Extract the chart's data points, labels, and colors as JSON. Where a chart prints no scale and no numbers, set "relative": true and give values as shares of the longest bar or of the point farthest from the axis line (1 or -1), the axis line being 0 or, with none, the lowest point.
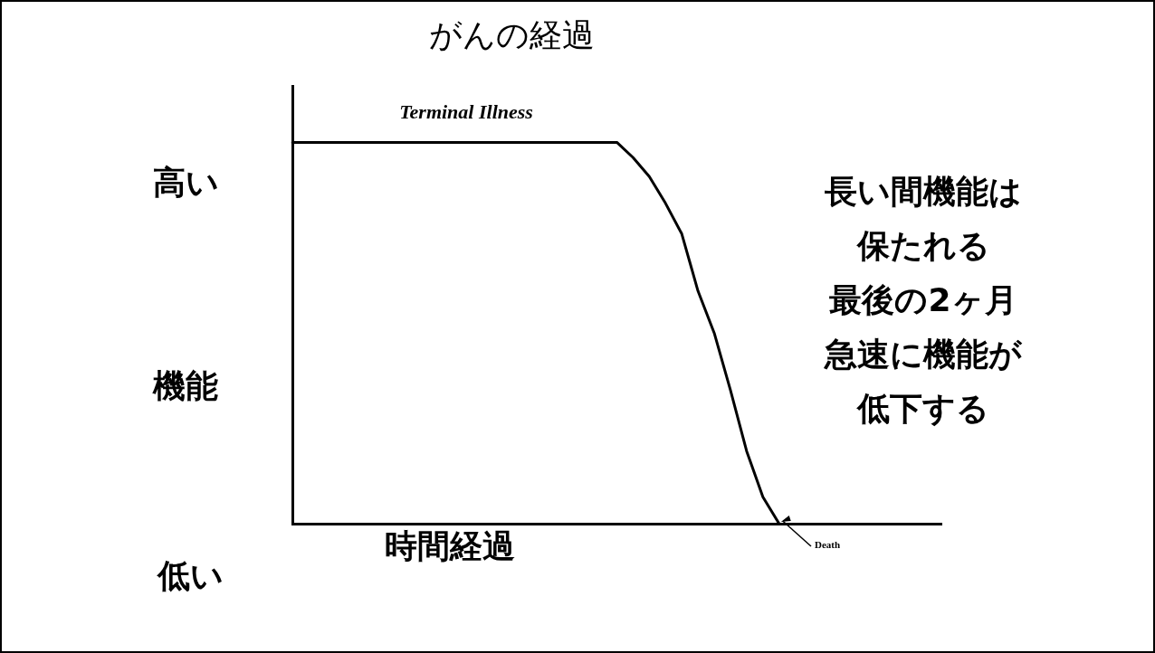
{
  "chart_data": {
    "type": "line",
    "relative": true,
    "title": "がんの経過",
    "ylabel": "機能",
    "categories": [
      null,
      null,
      null,
      null,
      null,
      null,
      null,
      null,
      null,
      null,
      null,
      null,
      null,
      null,
      null,
      null,
      null,
      null,
      null,
      null,
      null,
      null,
      null,
      null,
      null,
      null,
      null,
      null,
      null,
      null,
      null,
      null,
      null,
      null,
      null,
      null,
      null,
      null,
      null,
      null,
      null
    ],
    "series": [
      {
        "color": "#000000",
        "values": [
          1,
          1,
          1,
          1,
          1,
          1,
          1,
          1,
          1,
          1,
          1,
          1,
          1,
          1,
          1,
          1,
          1,
          1,
          1,
          1,
          1,
          0.96,
          0.91,
          0.84,
          0.76,
          0.61,
          0.5,
          0.35,
          0.19,
          0.07,
          0,
          null,
          null,
          null,
          null,
          null,
          null,
          null,
          null,
          null,
          null
        ]
      }
    ],
    "annotations": [
      "高い",
      "低い",
      "Terminal Illness",
      "時間経過",
      "Death",
      "長い間機能は",
      "保たれる",
      "最後の2ヶ月",
      "急速に機能が",
      "低下する"
    ],
    "grid": false,
    "legend": false,
    "marker": "none",
    "line_style": "solid"
  }
}
